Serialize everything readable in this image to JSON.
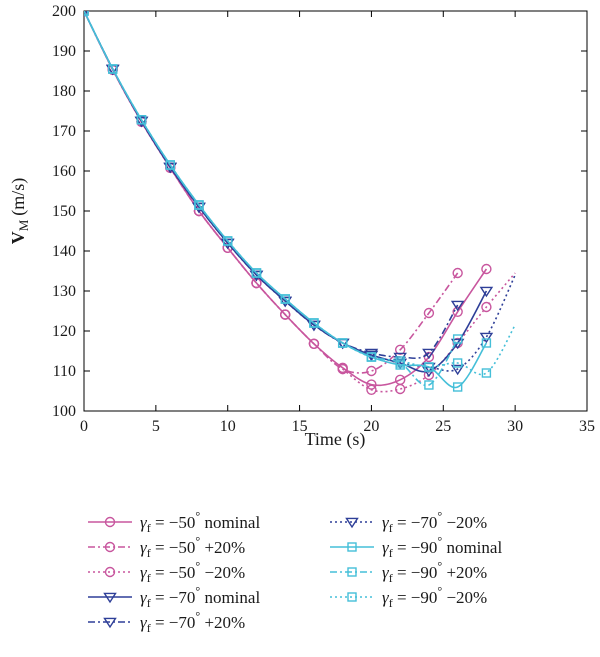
{
  "chart_data": {
    "type": "line",
    "title": "",
    "xlabel": "Time (s)",
    "ylabel": "V_M (m/s)",
    "ylabel_main": "V",
    "ylabel_sub": "M",
    "ylabel_unit": "(m/s)",
    "xlim": [
      0,
      35
    ],
    "ylim": [
      100,
      200
    ],
    "xticks": [
      0,
      5,
      10,
      15,
      20,
      25,
      30,
      35
    ],
    "yticks": [
      100,
      110,
      120,
      130,
      140,
      150,
      160,
      170,
      180,
      190,
      200
    ],
    "grid": false,
    "legend_position": "bottom",
    "colors": {
      "gamma_50": "#c8569e",
      "gamma_70": "#2e3f98",
      "gamma_90": "#45bfd8"
    },
    "series": [
      {
        "name": "γf = −50° nominal",
        "color": "#c8569e",
        "line": "solid",
        "marker": "circle",
        "x": [
          0,
          2,
          4,
          6,
          8,
          10,
          12,
          14,
          16,
          18,
          20,
          22,
          24,
          26,
          28
        ],
        "y": [
          200,
          185.3,
          172.3,
          160.8,
          150.0,
          140.8,
          132.0,
          124.1,
          116.8,
          110.8,
          106.6,
          107.8,
          113.5,
          124.8,
          135.5
        ]
      },
      {
        "name": "γf = −50° +20%",
        "color": "#c8569e",
        "line": "dashdot",
        "marker": "circle",
        "x": [
          0,
          2,
          4,
          6,
          8,
          10,
          12,
          14,
          16,
          18,
          20,
          22,
          24,
          26
        ],
        "y": [
          200,
          185.3,
          172.3,
          160.8,
          150.0,
          140.8,
          132.0,
          124.1,
          116.8,
          110.5,
          110.0,
          115.3,
          124.5,
          134.5
        ]
      },
      {
        "name": "γf = −50° −20%",
        "color": "#c8569e",
        "line": "dotted",
        "marker": "circle",
        "x": [
          0,
          2,
          4,
          6,
          8,
          10,
          12,
          14,
          16,
          18,
          20,
          22,
          24,
          26,
          28,
          30
        ],
        "y": [
          200,
          185.3,
          172.3,
          160.8,
          150.0,
          140.8,
          132.0,
          124.1,
          116.8,
          110.5,
          105.3,
          105.5,
          109.0,
          117.0,
          126.0,
          134.5
        ]
      },
      {
        "name": "γf = −70° nominal",
        "color": "#2e3f98",
        "line": "solid",
        "marker": "triangle-down",
        "x": [
          0,
          2,
          4,
          6,
          8,
          10,
          12,
          14,
          16,
          18,
          20,
          22,
          24,
          26,
          28
        ],
        "y": [
          200,
          185.5,
          172.5,
          161.0,
          151.0,
          142.0,
          134.0,
          127.5,
          121.5,
          117.0,
          114.0,
          112.0,
          110.0,
          117.0,
          130.0
        ]
      },
      {
        "name": "γf = −70° +20%",
        "color": "#2e3f98",
        "line": "dashdot",
        "marker": "triangle-down",
        "x": [
          0,
          2,
          4,
          6,
          8,
          10,
          12,
          14,
          16,
          18,
          20,
          22,
          24,
          26
        ],
        "y": [
          200,
          185.5,
          172.5,
          161.0,
          151.0,
          142.0,
          134.0,
          127.5,
          121.5,
          117.0,
          114.5,
          113.5,
          114.5,
          126.5
        ]
      },
      {
        "name": "γf = −70° −20%",
        "color": "#2e3f98",
        "line": "dotted",
        "marker": "triangle-down",
        "x": [
          0,
          2,
          4,
          6,
          8,
          10,
          12,
          14,
          16,
          18,
          20,
          22,
          24,
          26,
          28,
          30
        ],
        "y": [
          200,
          185.5,
          172.5,
          161.0,
          151.0,
          142.0,
          134.0,
          127.5,
          121.5,
          117.0,
          114.0,
          112.0,
          111.0,
          110.5,
          118.5,
          134.0
        ]
      },
      {
        "name": "γf = −90° nominal",
        "color": "#45bfd8",
        "line": "solid",
        "marker": "square",
        "x": [
          0,
          2,
          4,
          6,
          8,
          10,
          12,
          14,
          16,
          18,
          20,
          22,
          24,
          26,
          28
        ],
        "y": [
          200,
          185.5,
          172.8,
          161.5,
          151.5,
          142.5,
          134.5,
          128.0,
          122.0,
          117.0,
          113.5,
          111.5,
          111.0,
          106.0,
          117.0
        ]
      },
      {
        "name": "γf = −90° +20%",
        "color": "#45bfd8",
        "line": "dashdot",
        "marker": "square",
        "x": [
          0,
          2,
          4,
          6,
          8,
          10,
          12,
          14,
          16,
          18,
          20,
          22,
          24,
          26
        ],
        "y": [
          200,
          185.5,
          172.8,
          161.5,
          151.5,
          142.5,
          134.5,
          128.0,
          122.0,
          117.0,
          113.5,
          112.0,
          106.5,
          118.0
        ]
      },
      {
        "name": "γf = −90° −20%",
        "color": "#45bfd8",
        "line": "dotted",
        "marker": "square",
        "x": [
          0,
          2,
          4,
          6,
          8,
          10,
          12,
          14,
          16,
          18,
          20,
          22,
          24,
          26,
          28,
          30
        ],
        "y": [
          200,
          185.5,
          172.8,
          161.5,
          151.5,
          142.5,
          134.5,
          128.0,
          122.0,
          117.0,
          113.5,
          112.5,
          111.0,
          112.0,
          109.5,
          121.5
        ]
      }
    ],
    "legend": [
      {
        "symbol": "γ",
        "sub": "f",
        "eq": " = −50",
        "deg": "°",
        "suffix": " nominal"
      },
      {
        "symbol": "γ",
        "sub": "f",
        "eq": " = −50",
        "deg": "°",
        "suffix": " +20%"
      },
      {
        "symbol": "γ",
        "sub": "f",
        "eq": " = −50",
        "deg": "°",
        "suffix": " −20%"
      },
      {
        "symbol": "γ",
        "sub": "f",
        "eq": " = −70",
        "deg": "°",
        "suffix": " nominal"
      },
      {
        "symbol": "γ",
        "sub": "f",
        "eq": " = −70",
        "deg": "°",
        "suffix": " +20%"
      },
      {
        "symbol": "γ",
        "sub": "f",
        "eq": " = −70",
        "deg": "°",
        "suffix": " −20%"
      },
      {
        "symbol": "γ",
        "sub": "f",
        "eq": " = −90",
        "deg": "°",
        "suffix": " nominal"
      },
      {
        "symbol": "γ",
        "sub": "f",
        "eq": " = −90",
        "deg": "°",
        "suffix": " +20%"
      },
      {
        "symbol": "γ",
        "sub": "f",
        "eq": " = −90",
        "deg": "°",
        "suffix": " −20%"
      }
    ]
  }
}
